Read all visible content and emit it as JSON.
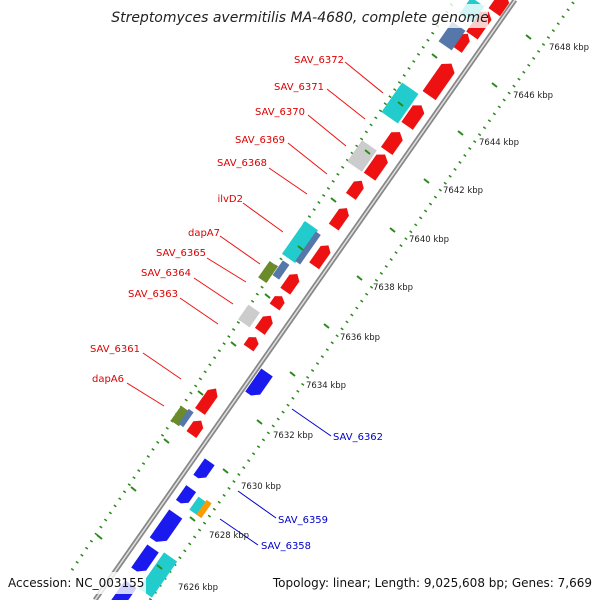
{
  "title": "Streptomyces avermitilis MA-4680, complete genome",
  "footer": {
    "accession": "Accession: NC_003155",
    "topology": "Topology: linear; Length: 9,025,608 bp; Genes: 7,669"
  },
  "colors": {
    "forward": "#ee1111",
    "reverse": "#1a1aee",
    "rna": "#22cccc",
    "pseudo": "#cccccc",
    "olive": "#6b8a2a",
    "steel": "#5577aa",
    "orange": "#ff9900",
    "backbone": "#999999",
    "ticks": "#2a8a1a",
    "fwd_label": "#dd0000",
    "rev_label": "#0000cc"
  },
  "ruler": [
    "7626 kbp",
    "7628 kbp",
    "7630 kbp",
    "7632 kbp",
    "7634 kbp",
    "7636 kbp",
    "7638 kbp",
    "7640 kbp",
    "7642 kbp",
    "7644 kbp",
    "7646 kbp",
    "7648 kbp"
  ],
  "forward_labels": [
    "SAV_6372",
    "SAV_6371",
    "SAV_6370",
    "SAV_6369",
    "SAV_6368",
    "ilvD2",
    "dapA7",
    "SAV_6365",
    "SAV_6364",
    "SAV_6363",
    "SAV_6361",
    "dapA6"
  ],
  "reverse_labels": [
    "SAV_6362",
    "SAV_6359",
    "SAV_6358"
  ]
}
